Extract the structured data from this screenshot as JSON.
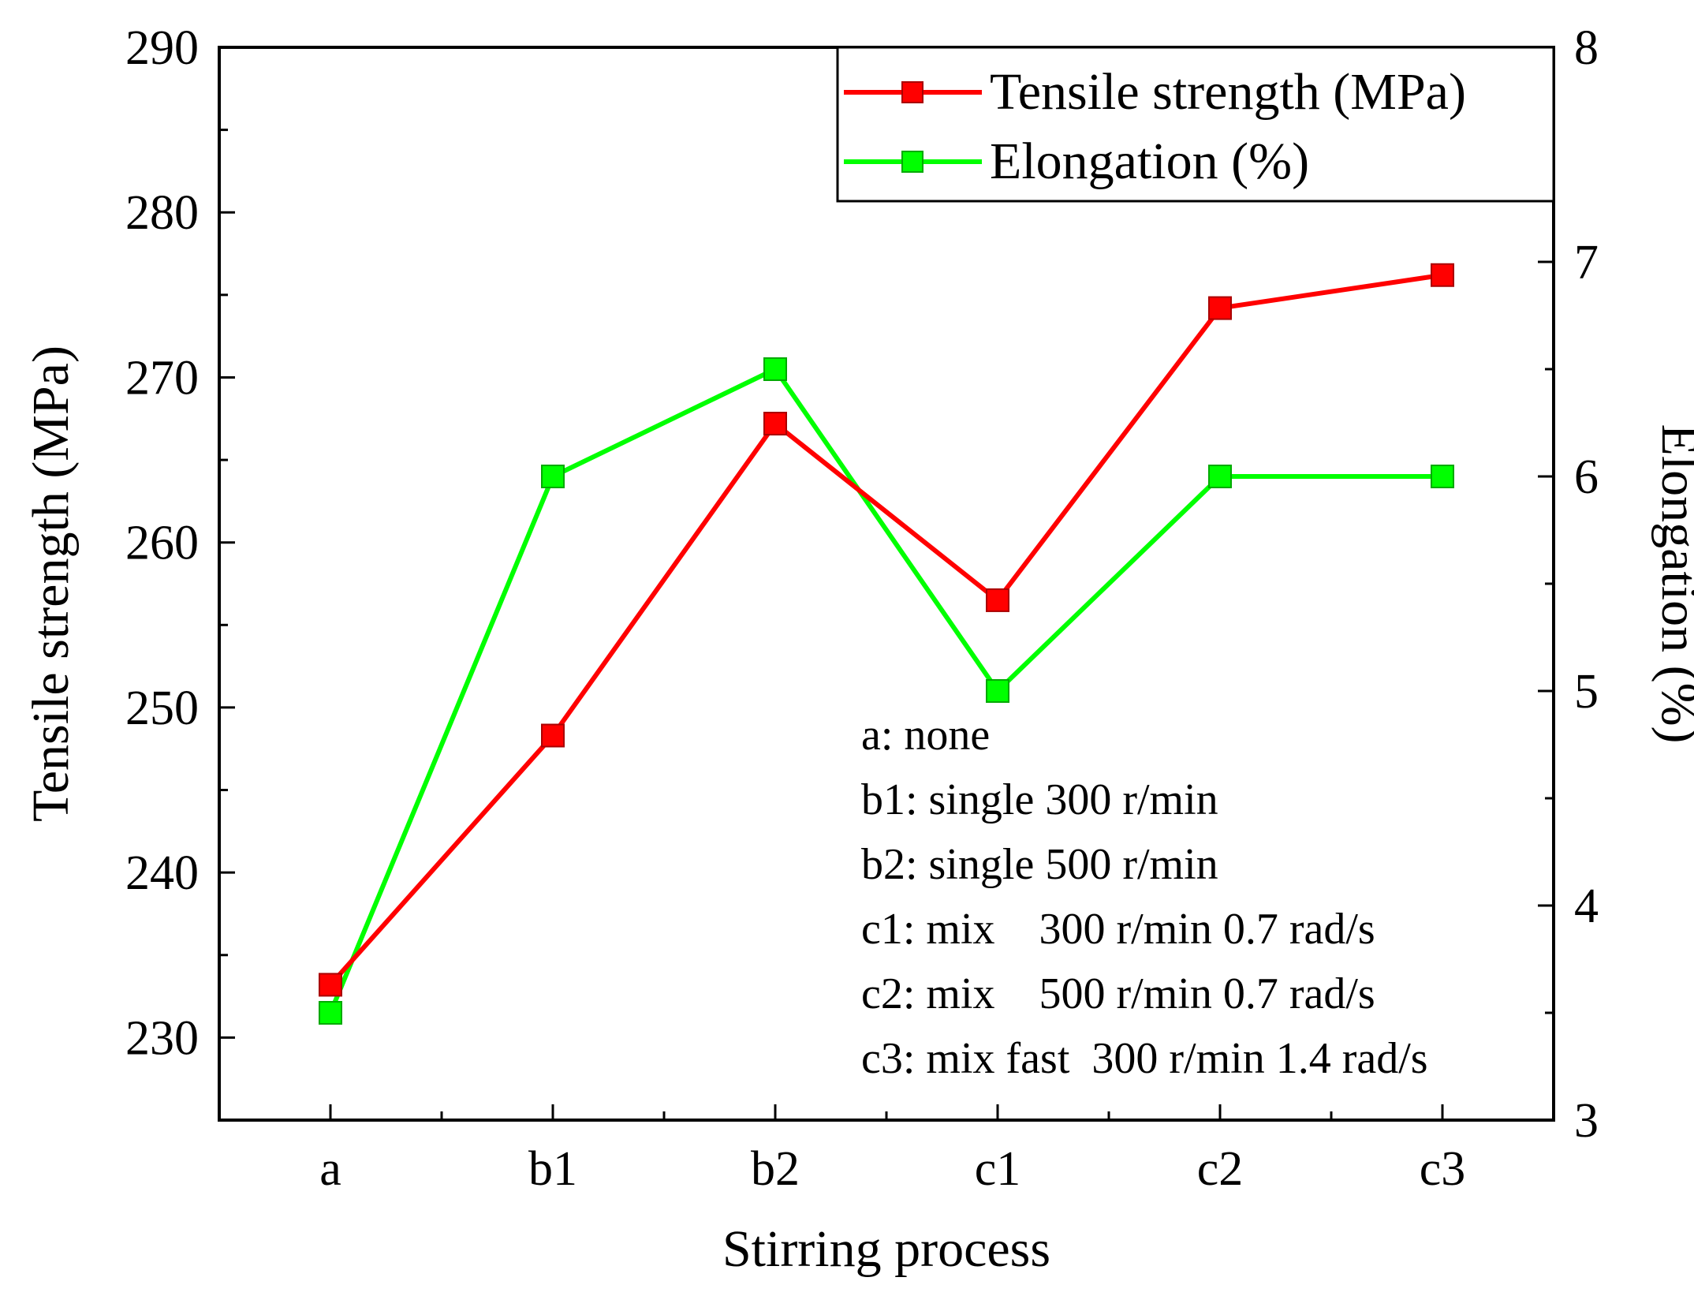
{
  "chart_data": {
    "type": "line",
    "xlabel": "Stirring process",
    "categories": [
      "a",
      "b1",
      "b2",
      "c1",
      "c2",
      "c3"
    ],
    "y_left": {
      "label": "Tensile strength (MPa)",
      "lim": [
        225,
        290
      ],
      "ticks": [
        230,
        240,
        250,
        260,
        270,
        280,
        290
      ]
    },
    "y_right": {
      "label": "Elongation (%)",
      "lim": [
        3,
        8
      ],
      "ticks": [
        3,
        4,
        5,
        6,
        7,
        8
      ]
    },
    "series": [
      {
        "name": "Tensile strength (MPa)",
        "axis": "left",
        "color": "#ff0000",
        "values": [
          233.2,
          248.3,
          267.2,
          256.5,
          274.2,
          276.2
        ]
      },
      {
        "name": "Elongation (%)",
        "axis": "right",
        "color": "#00ff00",
        "values": [
          3.5,
          6.0,
          6.5,
          5.0,
          6.0,
          6.0
        ]
      }
    ],
    "legend_position": "top-right",
    "grid": false,
    "annotations": [
      "a: none",
      "b1: single 300 r/min",
      "b2: single 500 r/min",
      "c1: mix    300 r/min 0.7 rad/s",
      "c2: mix    500 r/min 0.7 rad/s",
      "c3: mix fast  300 r/min 1.4 rad/s"
    ]
  }
}
